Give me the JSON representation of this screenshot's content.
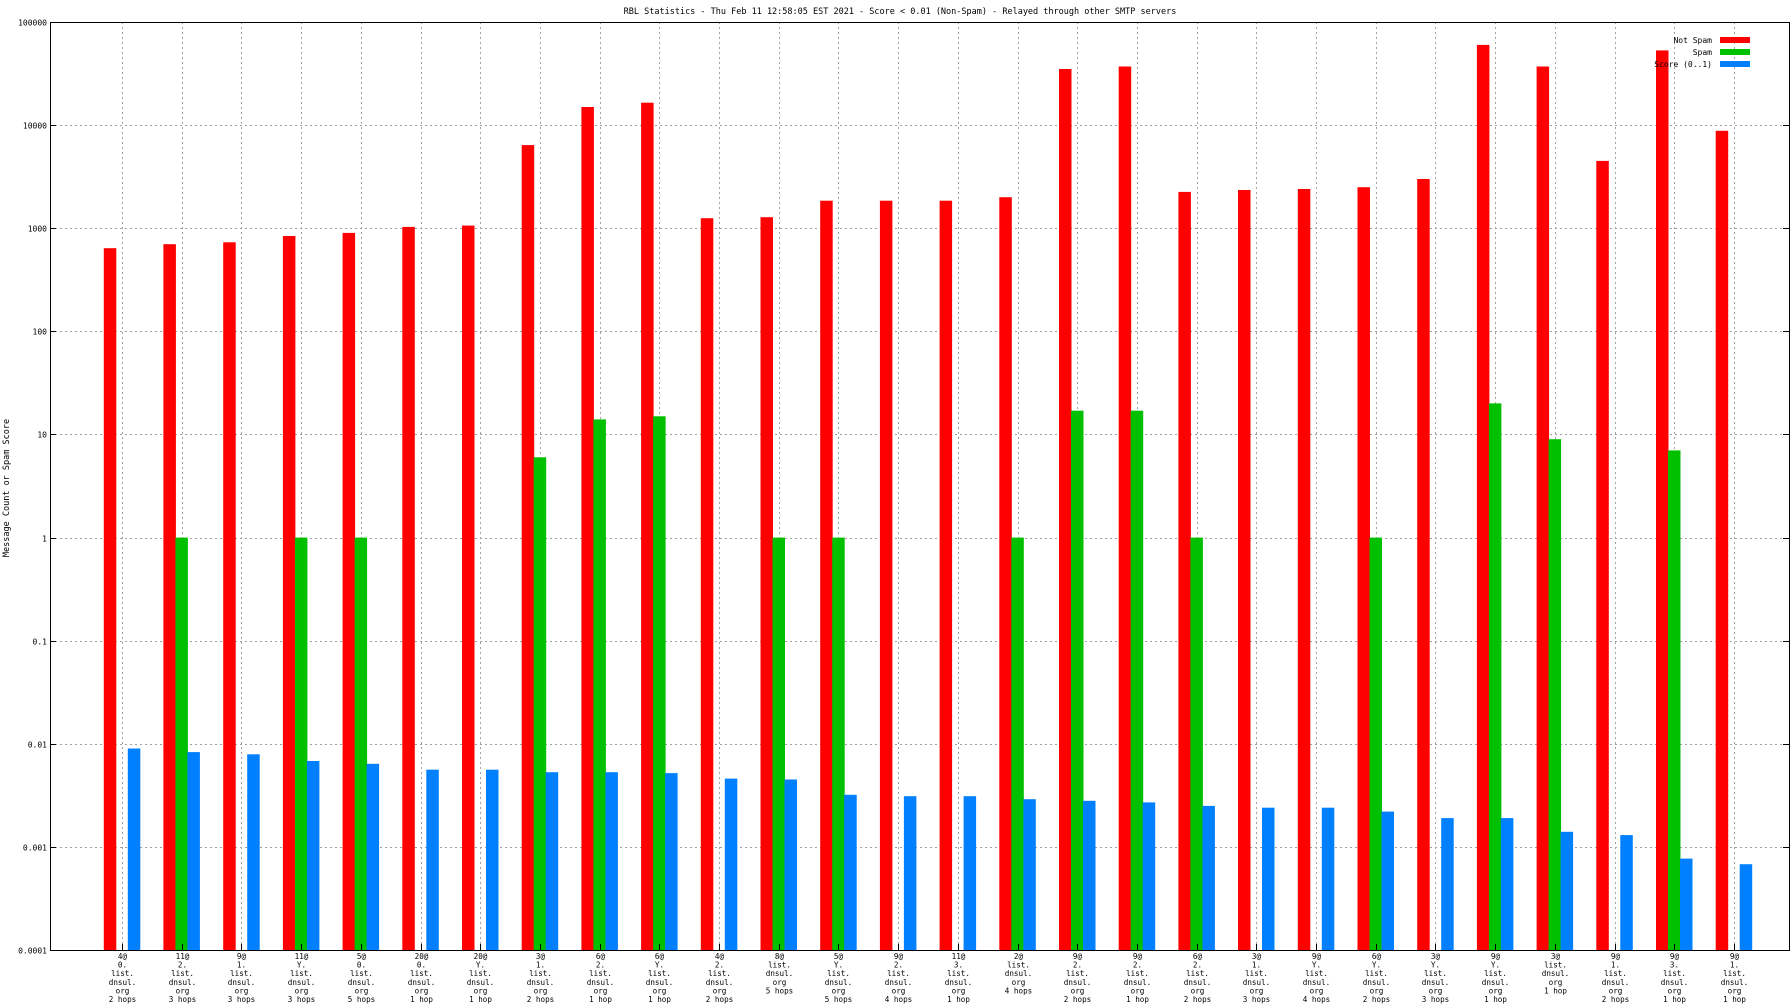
{
  "chart_data": {
    "type": "bar",
    "title": "RBL Statistics - Thu Feb 11 12:58:05 EST 2021 - Score < 0.01 (Non-Spam) - Relayed through other SMTP servers",
    "ylabel": "Message Count or Spam Score",
    "xlabel": "",
    "yscale": "log",
    "ylim": [
      0.0001,
      100000
    ],
    "yticks": [
      "0.0001",
      "0.001",
      "0.01",
      "0.1",
      "1",
      "10",
      "100",
      "1000",
      "10000",
      "100000"
    ],
    "grid": true,
    "legend_position": "top-right",
    "categories": [
      [
        "4@",
        "0.",
        "list.",
        "dnsul.",
        "org",
        "2 hops"
      ],
      [
        "11@",
        "2.",
        "list.",
        "dnsul.",
        "org",
        "3 hops"
      ],
      [
        "9@",
        "1.",
        "list.",
        "dnsul.",
        "org",
        "3 hops"
      ],
      [
        "11@",
        "Y.",
        "list.",
        "dnsul.",
        "org",
        "3 hops"
      ],
      [
        "5@",
        "0.",
        "list.",
        "dnsul.",
        "org",
        "5 hops"
      ],
      [
        "20@",
        "0.",
        "list.",
        "dnsul.",
        "org",
        "1 hop"
      ],
      [
        "20@",
        "Y.",
        "list.",
        "dnsul.",
        "org",
        "1 hop"
      ],
      [
        "3@",
        "1.",
        "list.",
        "dnsul.",
        "org",
        "2 hops"
      ],
      [
        "6@",
        "2.",
        "list.",
        "dnsul.",
        "org",
        "1 hop"
      ],
      [
        "6@",
        "Y.",
        "list.",
        "dnsul.",
        "org",
        "1 hop"
      ],
      [
        "4@",
        "2.",
        "list.",
        "dnsul.",
        "org",
        "2 hops"
      ],
      [
        "8@",
        "list.",
        "dnsul.",
        "org",
        "5 hops"
      ],
      [
        "5@",
        "Y.",
        "list.",
        "dnsul.",
        "org",
        "5 hops"
      ],
      [
        "9@",
        "2.",
        "list.",
        "dnsul.",
        "org",
        "4 hops"
      ],
      [
        "11@",
        "3.",
        "list.",
        "dnsul.",
        "org",
        "1 hop"
      ],
      [
        "2@",
        "list.",
        "dnsul.",
        "org",
        "4 hops"
      ],
      [
        "9@",
        "2.",
        "list.",
        "dnsul.",
        "org",
        "2 hops"
      ],
      [
        "9@",
        "2.",
        "list.",
        "dnsul.",
        "org",
        "1 hop"
      ],
      [
        "6@",
        "2.",
        "list.",
        "dnsul.",
        "org",
        "2 hops"
      ],
      [
        "3@",
        "1.",
        "list.",
        "dnsul.",
        "org",
        "3 hops"
      ],
      [
        "9@",
        "Y.",
        "list.",
        "dnsul.",
        "org",
        "4 hops"
      ],
      [
        "6@",
        "Y.",
        "list.",
        "dnsul.",
        "org",
        "2 hops"
      ],
      [
        "3@",
        "Y.",
        "list.",
        "dnsul.",
        "org",
        "3 hops"
      ],
      [
        "9@",
        "Y.",
        "list.",
        "dnsul.",
        "org",
        "1 hop"
      ],
      [
        "3@",
        "list.",
        "dnsul.",
        "org",
        "1 hop"
      ],
      [
        "9@",
        "1.",
        "list.",
        "dnsul.",
        "org",
        "2 hops"
      ],
      [
        "9@",
        "3.",
        "list.",
        "dnsul.",
        "org",
        "1 hop"
      ],
      [
        "9@",
        "1.",
        "list.",
        "dnsul.",
        "org",
        "1 hop"
      ]
    ],
    "series": [
      {
        "name": "Not Spam",
        "color": "#ff0000",
        "values": [
          640,
          700,
          730,
          840,
          900,
          1030,
          1060,
          6400,
          15000,
          16500,
          1250,
          1280,
          1850,
          1850,
          1850,
          2000,
          35000,
          37000,
          2250,
          2350,
          2400,
          2500,
          3000,
          60000,
          37000,
          4500,
          53000,
          8800
        ]
      },
      {
        "name": "Spam",
        "color": "#00c000",
        "values": [
          null,
          1,
          null,
          1,
          1,
          null,
          null,
          6,
          14,
          15,
          null,
          1,
          1,
          null,
          null,
          1,
          17,
          17,
          1,
          null,
          null,
          1,
          null,
          20,
          9,
          null,
          7,
          null
        ]
      },
      {
        "name": "Score (0..1)",
        "color": "#0080ff",
        "values": [
          0.009,
          0.0083,
          0.0079,
          0.0068,
          0.0064,
          0.0056,
          0.0056,
          0.0053,
          0.0053,
          0.0052,
          0.0046,
          0.0045,
          0.0032,
          0.0031,
          0.0031,
          0.0029,
          0.0028,
          0.0027,
          0.0025,
          0.0024,
          0.0024,
          0.0022,
          0.0019,
          0.0019,
          0.0014,
          0.0013,
          0.00077,
          0.00068
        ]
      }
    ]
  }
}
